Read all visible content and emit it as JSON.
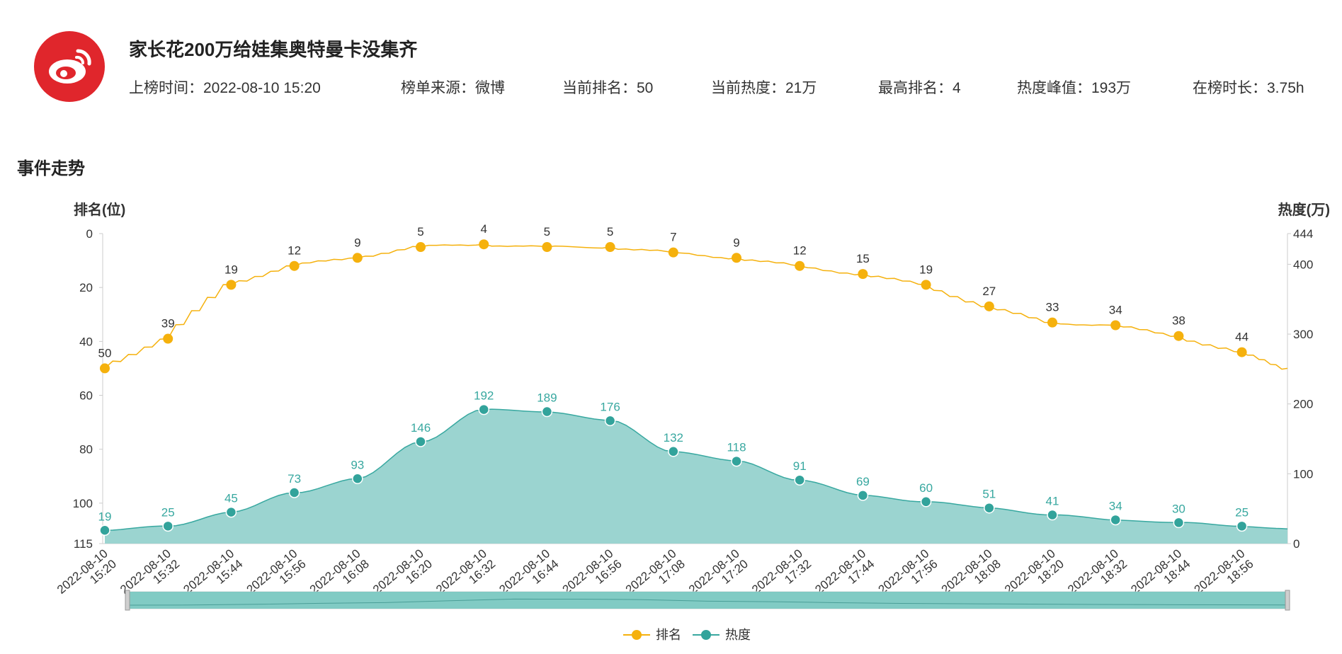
{
  "header": {
    "logo_icon": "weibo-logo-icon",
    "title": "家长花200万给娃集奥特曼卡没集齐",
    "meta": [
      {
        "label": "上榜时间：",
        "value": "2022-08-10 15:20"
      },
      {
        "label": "榜单来源：",
        "value": "微博"
      },
      {
        "label": "当前排名：",
        "value": "50"
      },
      {
        "label": "当前热度：",
        "value": "21万"
      },
      {
        "label": "最高排名：",
        "value": "4"
      },
      {
        "label": "热度峰值：",
        "value": "193万"
      },
      {
        "label": "在榜时长：",
        "value": "3.75h"
      }
    ]
  },
  "section": {
    "title": "事件走势"
  },
  "colors": {
    "rank": "#f5b10d",
    "heat_line": "#38a8a0",
    "heat_fill": "#9bd4d0",
    "heat_dot": "#32a39b",
    "axis": "#cccccc",
    "slider": "#6cc3bb"
  },
  "chart_data": {
    "type": "line",
    "categories": [
      "2022-08-10\n15:20",
      "2022-08-10\n15:32",
      "2022-08-10\n15:44",
      "2022-08-10\n15:56",
      "2022-08-10\n16:08",
      "2022-08-10\n16:20",
      "2022-08-10\n16:32",
      "2022-08-10\n16:44",
      "2022-08-10\n16:56",
      "2022-08-10\n17:08",
      "2022-08-10\n17:20",
      "2022-08-10\n17:32",
      "2022-08-10\n17:44",
      "2022-08-10\n17:56",
      "2022-08-10\n18:08",
      "2022-08-10\n18:20",
      "2022-08-10\n18:32",
      "2022-08-10\n18:44",
      "2022-08-10\n18:56"
    ],
    "series": [
      {
        "name": "排名",
        "axis": "left",
        "type": "line",
        "values": [
          50,
          39,
          19,
          12,
          9,
          5,
          4,
          5,
          5,
          7,
          9,
          12,
          15,
          19,
          27,
          33,
          34,
          38,
          44
        ],
        "trailing_value": 50
      },
      {
        "name": "热度",
        "axis": "right",
        "type": "area",
        "values": [
          19,
          25,
          45,
          73,
          93,
          146,
          192,
          189,
          176,
          132,
          118,
          91,
          69,
          60,
          51,
          41,
          34,
          30,
          25
        ],
        "trailing_value": 21
      }
    ],
    "y_left": {
      "label": "排名(位)",
      "min": 0,
      "max": 115,
      "inverse": true,
      "ticks": [
        0,
        20,
        40,
        60,
        80,
        100,
        115
      ]
    },
    "y_right": {
      "label": "热度(万)",
      "min": 0,
      "max": 444,
      "ticks": [
        0,
        100,
        200,
        300,
        400,
        444
      ]
    },
    "legend": {
      "position": "bottom-center",
      "items": [
        "排名",
        "热度"
      ]
    },
    "data_zoom": {
      "start": 0,
      "end": 100
    }
  }
}
